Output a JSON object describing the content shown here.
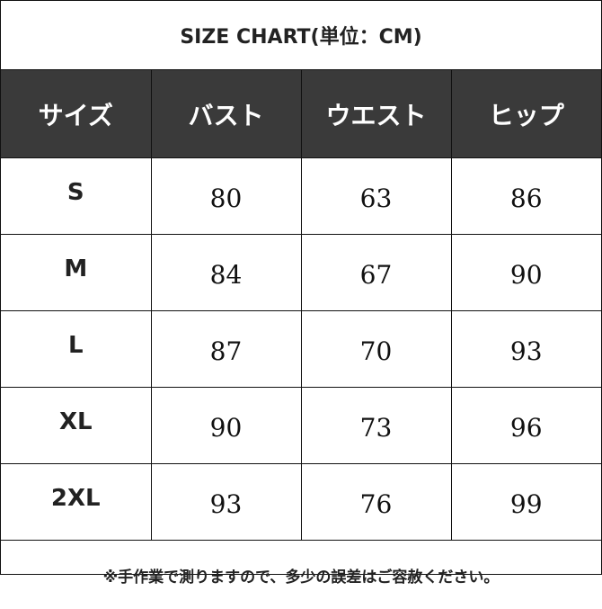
{
  "title": "SIZE CHART(単位：CM)",
  "headers": [
    "サイズ",
    "バスト",
    "ウエスト",
    "ヒップ"
  ],
  "rows": [
    {
      "size": "S",
      "values": [
        "80",
        "63",
        "86"
      ]
    },
    {
      "size": "M",
      "values": [
        "84",
        "67",
        "90"
      ]
    },
    {
      "size": "L",
      "values": [
        "87",
        "70",
        "93"
      ]
    },
    {
      "size": "XL",
      "values": [
        "90",
        "73",
        "96"
      ]
    },
    {
      "size": "2XL",
      "values": [
        "93",
        "76",
        "99"
      ]
    }
  ],
  "note": "※手作業で測りますので、多少の誤差はご容赦ください。",
  "colors": {
    "header_bg": "#3a3a3a",
    "header_text": "#ffffff",
    "border": "#111111"
  }
}
